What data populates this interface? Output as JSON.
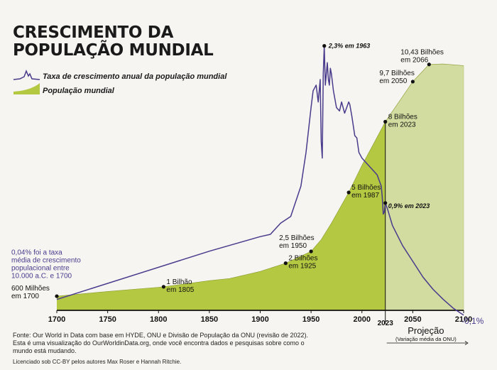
{
  "title_line1": "CRESCIMENTO DA",
  "title_line2": "POPULAÇÃO MUNDIAL",
  "legend": {
    "growth_label": "Taxa de crescimento anual da população mundial",
    "population_label": "População mundial"
  },
  "colors": {
    "growth_line": "#4a3a8c",
    "population_fill": "#b5c842",
    "projection_fill": "#d2dca0",
    "axis": "#111111"
  },
  "footer": {
    "line1": "Fonte: Our World in Data com base em HYDE, ONU e Divisão de População da ONU (revisão de 2022).",
    "line2": "Esta é uma visualização do OurWorldinData.org, onde você encontra dados e pesquisas sobre como o",
    "line3": "mundo está mudando.",
    "license": "Licenciado sob CC-BY pelos autores Max Roser e Hannah Ritchie."
  },
  "chart_data": {
    "type": "area",
    "xlim": [
      1700,
      2100
    ],
    "x_ticks": [
      "1700",
      "1750",
      "1800",
      "1850",
      "1900",
      "1950",
      "2000",
      "2050",
      "2100"
    ],
    "highlight_tick": "2023",
    "projection_label": "Projeção",
    "projection_sublabel": "(Variação média da ONU)",
    "population_billions": {
      "x": [
        1700,
        1750,
        1800,
        1805,
        1850,
        1870,
        1900,
        1925,
        1950,
        1960,
        1970,
        1987,
        2000,
        2010,
        2023,
        2050,
        2066,
        2080,
        2100
      ],
      "y": [
        0.6,
        0.8,
        0.98,
        1.0,
        1.26,
        1.35,
        1.65,
        2.0,
        2.5,
        3.0,
        3.7,
        5.0,
        6.15,
        6.95,
        8.0,
        9.7,
        10.43,
        10.45,
        10.38
      ]
    },
    "growth_rate_percent": {
      "x": [
        1700,
        1850,
        1900,
        1910,
        1920,
        1930,
        1940,
        1945,
        1950,
        1952,
        1955,
        1957,
        1959,
        1960,
        1961,
        1962,
        1963,
        1964,
        1965,
        1966,
        1967,
        1968,
        1969,
        1970,
        1972,
        1975,
        1978,
        1980,
        1983,
        1985,
        1987,
        1988,
        1990,
        1993,
        1995,
        1997,
        2000,
        2005,
        2010,
        2015,
        2019,
        2020,
        2021,
        2022,
        2023,
        2025,
        2030,
        2040,
        2050,
        2060,
        2070,
        2080,
        2090,
        2100
      ],
      "y": [
        0.04,
        0.47,
        0.6,
        0.62,
        0.72,
        0.78,
        1.05,
        1.35,
        1.75,
        1.9,
        1.95,
        1.8,
        2.0,
        1.45,
        1.3,
        2.05,
        2.3,
        1.95,
        2.05,
        2.15,
        2.0,
        1.95,
        2.1,
        2.05,
        1.9,
        1.75,
        1.72,
        1.8,
        1.7,
        1.75,
        1.8,
        1.78,
        1.68,
        1.5,
        1.48,
        1.35,
        1.3,
        1.25,
        1.2,
        1.15,
        1.05,
        0.95,
        0.8,
        0.82,
        0.9,
        0.85,
        0.7,
        0.52,
        0.38,
        0.24,
        0.13,
        0.04,
        -0.04,
        -0.1
      ]
    },
    "annotations": [
      {
        "series": "population",
        "x": 1700,
        "y": 0.6,
        "text": "600 Milhões\nem 1700"
      },
      {
        "series": "population",
        "x": 1805,
        "y": 1.0,
        "text": "1 Bilhão\nem 1805"
      },
      {
        "series": "population",
        "x": 1925,
        "y": 2.0,
        "text": "2 Bilhões\nem 1925"
      },
      {
        "series": "population",
        "x": 1950,
        "y": 2.5,
        "text": "2,5 Bilhões\nem 1950"
      },
      {
        "series": "population",
        "x": 1987,
        "y": 5.0,
        "text": "5 Bilhões\nem 1987"
      },
      {
        "series": "population",
        "x": 2023,
        "y": 8.0,
        "text": "8 Bilhões\nem 2023"
      },
      {
        "series": "population",
        "x": 2050,
        "y": 9.7,
        "text": "9,7 Bilhões\nem 2050"
      },
      {
        "series": "population",
        "x": 2066,
        "y": 10.43,
        "text": "10,43 Bilhões\nem 2066"
      },
      {
        "series": "growth",
        "x": 1963,
        "y": 2.3,
        "text": "2,3% em 1963"
      },
      {
        "series": "growth",
        "x": 2023,
        "y": 0.9,
        "text": "0,9% em 2023"
      },
      {
        "series": "growth",
        "x": 1700,
        "y": 0.04,
        "text": "0,04% foi a taxa\nmédia de crescimento\npopulacional entre\n10.000 a.C. e 1700"
      },
      {
        "series": "growth",
        "x": 2100,
        "y": -0.1,
        "text": "-0,1%"
      }
    ]
  }
}
